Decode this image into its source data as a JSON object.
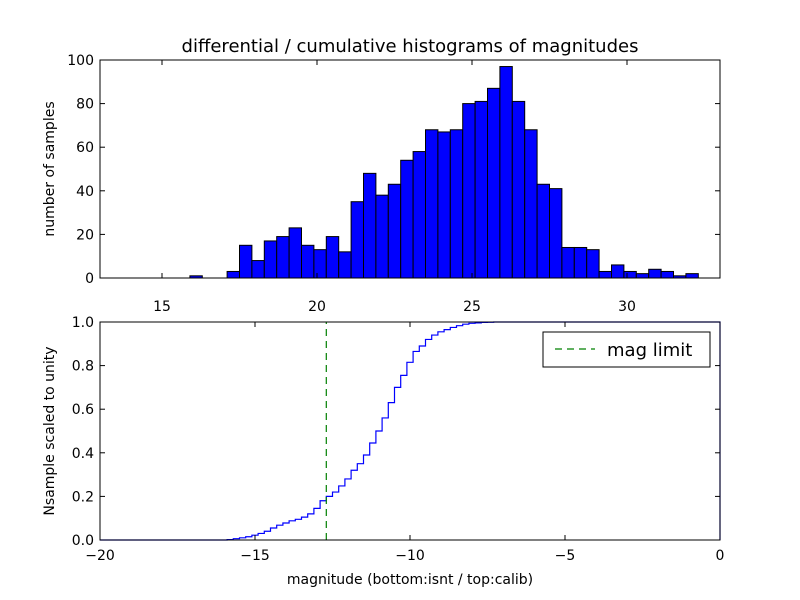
{
  "chart_data": [
    {
      "type": "bar",
      "title": "differential / cumulative histograms of magnitudes",
      "xlabel": "",
      "ylabel": "number of samples",
      "xlim": [
        13.0,
        33.0
      ],
      "ylim": [
        0,
        100
      ],
      "xticks": [
        "15",
        "20",
        "25",
        "30"
      ],
      "yticks": [
        "0",
        "20",
        "40",
        "60",
        "80",
        "100"
      ],
      "grid": false,
      "color": "#0000ff",
      "bins": {
        "edges_start": 15.5,
        "bin_width": 0.4,
        "values": [
          0,
          1,
          0,
          0,
          3,
          15,
          8,
          17,
          19,
          23,
          15,
          13,
          19,
          12,
          35,
          48,
          38,
          43,
          54,
          58,
          68,
          67,
          68,
          80,
          81,
          87,
          97,
          81,
          68,
          43,
          41,
          14,
          14,
          13,
          3,
          6,
          3,
          2,
          4,
          3,
          1,
          2
        ]
      }
    },
    {
      "type": "line",
      "step": true,
      "xlabel": "magnitude (bottom:isnt / top:calib)",
      "ylabel": "Nsample scaled to unity",
      "xlim": [
        -20,
        0
      ],
      "ylim": [
        0.0,
        1.0
      ],
      "xticks": [
        "−20",
        "−15",
        "−10",
        "−5",
        "0"
      ],
      "yticks": [
        "0.0",
        "0.2",
        "0.4",
        "0.6",
        "0.8",
        "1.0"
      ],
      "grid": false,
      "legend": "top-right",
      "series": [
        {
          "name": "",
          "color": "#0000ff",
          "x": [
            -20.0,
            -16.0,
            -15.9,
            -15.7,
            -15.5,
            -15.3,
            -15.1,
            -14.9,
            -14.7,
            -14.5,
            -14.3,
            -14.1,
            -13.9,
            -13.7,
            -13.5,
            -13.3,
            -13.1,
            -12.9,
            -12.7,
            -12.5,
            -12.3,
            -12.1,
            -11.9,
            -11.7,
            -11.5,
            -11.3,
            -11.1,
            -10.9,
            -10.7,
            -10.5,
            -10.3,
            -10.1,
            -9.9,
            -9.7,
            -9.5,
            -9.3,
            -9.1,
            -8.9,
            -8.7,
            -8.5,
            -8.3,
            -8.1,
            -7.9,
            -7.7,
            -7.5,
            -7.3,
            -7.1,
            -6.9,
            -6.7,
            -6.5,
            0.0
          ],
          "y": [
            0.0,
            0.0,
            0.002,
            0.006,
            0.01,
            0.015,
            0.022,
            0.03,
            0.04,
            0.055,
            0.068,
            0.078,
            0.088,
            0.095,
            0.105,
            0.12,
            0.145,
            0.18,
            0.2,
            0.22,
            0.248,
            0.28,
            0.32,
            0.35,
            0.39,
            0.445,
            0.5,
            0.56,
            0.63,
            0.7,
            0.755,
            0.815,
            0.865,
            0.89,
            0.92,
            0.94,
            0.955,
            0.965,
            0.975,
            0.983,
            0.99,
            0.994,
            0.996,
            0.998,
            0.999,
            1.0,
            1.0,
            1.0,
            1.0,
            1.0,
            1.0
          ]
        },
        {
          "name": "mag limit",
          "color": "#008000",
          "style": "dashed",
          "x": [
            -12.7,
            -12.7
          ],
          "y": [
            0.0,
            1.0
          ]
        }
      ]
    }
  ]
}
